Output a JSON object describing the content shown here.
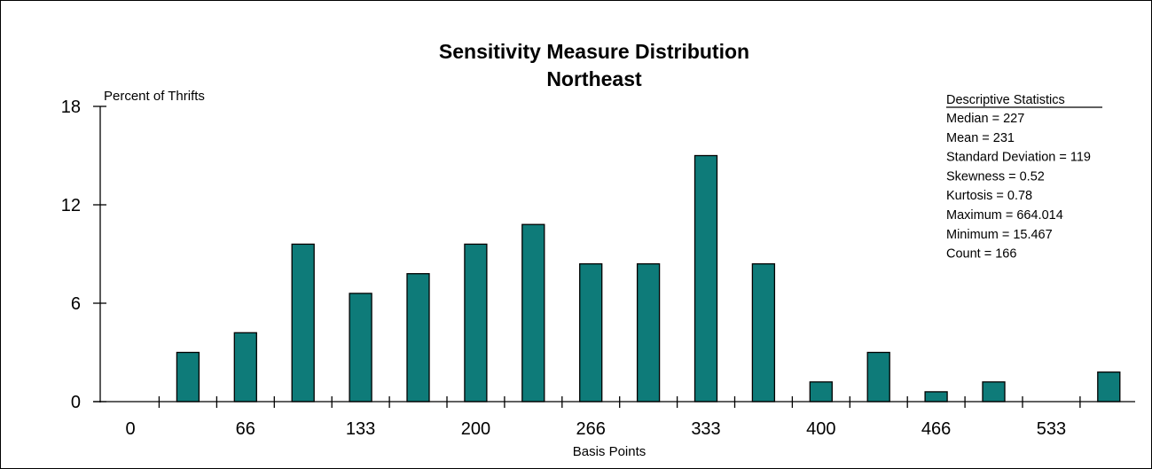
{
  "chart_data": {
    "type": "bar",
    "title": "Sensitivity Measure Distribution",
    "subtitle": "Northeast",
    "ylabel": "Percent of Thrifts",
    "xlabel": "Basis Points",
    "ylim": [
      0,
      18
    ],
    "y_ticks": [
      "0",
      "6",
      "12",
      "18"
    ],
    "x_tick_labels": [
      "0",
      "66",
      "133",
      "200",
      "266",
      "333",
      "400",
      "466",
      "533"
    ],
    "values": [
      0,
      3.0,
      4.2,
      9.6,
      6.6,
      7.8,
      9.6,
      10.8,
      8.4,
      8.4,
      15.0,
      8.4,
      1.2,
      3.0,
      0.6,
      1.2,
      0,
      1.8
    ],
    "bar_color": "#0e7b79",
    "grid": false,
    "legend": "none"
  },
  "stats": {
    "heading": "Descriptive Statistics",
    "lines": [
      "Median = 227",
      "Mean = 231",
      "Standard Deviation = 119",
      "Skewness = 0.52",
      "Kurtosis = 0.78",
      "Maximum = 664.014",
      "Minimum = 15.467",
      "Count = 166"
    ]
  }
}
